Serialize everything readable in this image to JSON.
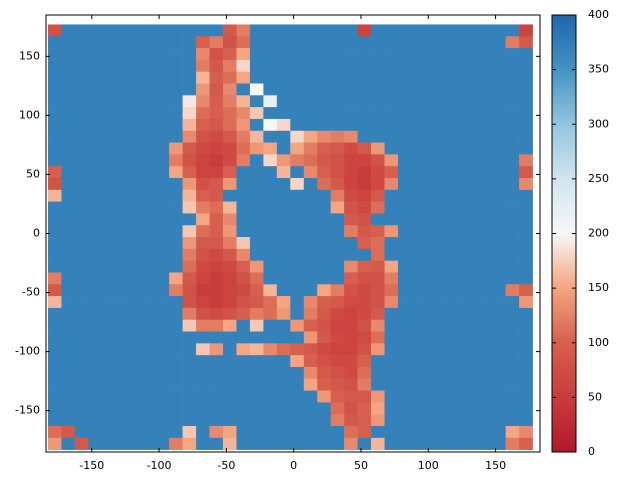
{
  "chart_data": {
    "type": "heatmap",
    "xlim": [
      -184,
      183
    ],
    "ylim": [
      -185,
      185
    ],
    "xticks": [
      -150,
      -100,
      -50,
      0,
      50,
      100,
      150
    ],
    "yticks": [
      -150,
      -100,
      -50,
      0,
      50,
      100,
      150
    ],
    "clim": [
      0,
      400
    ],
    "cticks": [
      0,
      50,
      100,
      150,
      200,
      250,
      300,
      350,
      400
    ],
    "colorscale": [
      [
        0,
        "#b2182b"
      ],
      [
        50,
        "#c93c3c"
      ],
      [
        100,
        "#d6604d"
      ],
      [
        150,
        "#f4a582"
      ],
      [
        200,
        "#f7f7f7"
      ],
      [
        250,
        "#d1e5f0"
      ],
      [
        300,
        "#92c5de"
      ],
      [
        350,
        "#4393c3"
      ],
      [
        400,
        "#2166ac"
      ]
    ],
    "x": [
      -177.5,
      -167.5,
      -157.5,
      -147.5,
      -137.5,
      -127.5,
      -117.5,
      -107.5,
      -97.5,
      -87.5,
      -77.5,
      -67.5,
      -57.5,
      -47.5,
      -37.5,
      -27.5,
      -17.5,
      -7.5,
      2.5,
      12.5,
      22.5,
      32.5,
      42.5,
      52.5,
      62.5,
      72.5,
      82.5,
      92.5,
      102.5,
      112.5,
      122.5,
      132.5,
      142.5,
      152.5,
      162.5,
      172.5
    ],
    "y": [
      172,
      162,
      152,
      142,
      132,
      122,
      112,
      102,
      92,
      82,
      72,
      62,
      52,
      42,
      32,
      22,
      12,
      2,
      -8,
      -18,
      -28,
      -38,
      -48,
      -58,
      -68,
      -78,
      -88,
      -98,
      -108,
      -118,
      -128,
      -138,
      -148,
      -158,
      -168,
      -178
    ],
    "z": [
      [
        80,
        370,
        370,
        370,
        370,
        370,
        370,
        370,
        370,
        370,
        370,
        370,
        370,
        90,
        120,
        370,
        370,
        370,
        370,
        370,
        370,
        370,
        370,
        60,
        370,
        370,
        370,
        370,
        370,
        370,
        370,
        370,
        370,
        370,
        370,
        60
      ],
      [
        370,
        370,
        370,
        370,
        370,
        370,
        370,
        370,
        370,
        370,
        370,
        100,
        120,
        80,
        110,
        370,
        370,
        370,
        370,
        370,
        370,
        370,
        370,
        370,
        370,
        370,
        370,
        370,
        370,
        370,
        370,
        370,
        370,
        370,
        120,
        90
      ],
      [
        370,
        370,
        370,
        370,
        370,
        370,
        370,
        370,
        370,
        370,
        370,
        130,
        80,
        100,
        150,
        370,
        370,
        370,
        370,
        370,
        370,
        370,
        370,
        370,
        370,
        370,
        370,
        370,
        370,
        370,
        370,
        370,
        370,
        370,
        370,
        370
      ],
      [
        370,
        370,
        370,
        370,
        370,
        370,
        370,
        370,
        370,
        370,
        370,
        120,
        90,
        120,
        180,
        370,
        370,
        370,
        370,
        370,
        370,
        370,
        370,
        370,
        370,
        370,
        370,
        370,
        370,
        370,
        370,
        370,
        370,
        370,
        370,
        370
      ],
      [
        370,
        370,
        370,
        370,
        370,
        370,
        370,
        370,
        370,
        370,
        370,
        160,
        100,
        110,
        150,
        370,
        370,
        370,
        370,
        370,
        370,
        370,
        370,
        370,
        370,
        370,
        370,
        370,
        370,
        370,
        370,
        370,
        370,
        370,
        370,
        370
      ],
      [
        370,
        370,
        370,
        370,
        370,
        370,
        370,
        370,
        370,
        370,
        370,
        140,
        90,
        130,
        370,
        200,
        370,
        370,
        370,
        370,
        370,
        370,
        370,
        370,
        370,
        370,
        370,
        370,
        370,
        370,
        370,
        370,
        370,
        370,
        370,
        370
      ],
      [
        370,
        370,
        370,
        370,
        370,
        370,
        370,
        370,
        370,
        370,
        190,
        130,
        100,
        120,
        160,
        370,
        220,
        370,
        370,
        370,
        370,
        370,
        370,
        370,
        370,
        370,
        370,
        370,
        370,
        370,
        370,
        370,
        370,
        370,
        370,
        370
      ],
      [
        370,
        370,
        370,
        370,
        370,
        370,
        370,
        370,
        370,
        370,
        180,
        110,
        100,
        110,
        130,
        170,
        370,
        370,
        370,
        370,
        370,
        370,
        370,
        370,
        370,
        370,
        370,
        370,
        370,
        370,
        370,
        370,
        370,
        370,
        370,
        370
      ],
      [
        370,
        370,
        370,
        370,
        370,
        370,
        370,
        370,
        370,
        370,
        160,
        100,
        90,
        110,
        140,
        370,
        200,
        180,
        370,
        370,
        370,
        370,
        370,
        370,
        370,
        370,
        370,
        370,
        370,
        370,
        370,
        370,
        370,
        370,
        370,
        370
      ],
      [
        370,
        370,
        370,
        370,
        370,
        370,
        370,
        370,
        370,
        370,
        130,
        80,
        70,
        90,
        120,
        160,
        370,
        370,
        180,
        150,
        130,
        120,
        130,
        370,
        370,
        370,
        370,
        370,
        370,
        370,
        370,
        370,
        370,
        370,
        370,
        370
      ],
      [
        370,
        370,
        370,
        370,
        370,
        370,
        370,
        370,
        370,
        140,
        90,
        70,
        60,
        70,
        110,
        140,
        150,
        370,
        150,
        120,
        100,
        90,
        70,
        90,
        140,
        370,
        370,
        370,
        370,
        370,
        370,
        370,
        370,
        370,
        370,
        370
      ],
      [
        370,
        370,
        370,
        370,
        370,
        370,
        370,
        370,
        370,
        120,
        80,
        60,
        50,
        70,
        120,
        370,
        180,
        140,
        120,
        110,
        90,
        80,
        60,
        60,
        80,
        140,
        370,
        370,
        370,
        370,
        370,
        370,
        370,
        370,
        370,
        120
      ],
      [
        100,
        370,
        370,
        370,
        370,
        370,
        370,
        370,
        370,
        150,
        100,
        60,
        60,
        100,
        370,
        370,
        370,
        160,
        370,
        130,
        100,
        80,
        60,
        50,
        70,
        100,
        370,
        370,
        370,
        370,
        370,
        370,
        370,
        370,
        370,
        90
      ],
      [
        80,
        370,
        370,
        370,
        370,
        370,
        370,
        370,
        370,
        370,
        140,
        80,
        90,
        140,
        370,
        370,
        370,
        370,
        180,
        370,
        110,
        90,
        60,
        50,
        70,
        130,
        370,
        370,
        370,
        370,
        370,
        370,
        370,
        370,
        370,
        130
      ],
      [
        160,
        370,
        370,
        370,
        370,
        370,
        370,
        370,
        370,
        370,
        160,
        100,
        90,
        370,
        370,
        370,
        370,
        370,
        370,
        370,
        370,
        120,
        70,
        60,
        90,
        370,
        370,
        370,
        370,
        370,
        370,
        370,
        370,
        370,
        370,
        370
      ],
      [
        370,
        370,
        370,
        370,
        370,
        370,
        370,
        370,
        370,
        370,
        170,
        120,
        110,
        160,
        370,
        370,
        370,
        370,
        370,
        370,
        370,
        150,
        80,
        70,
        110,
        370,
        370,
        370,
        370,
        370,
        370,
        370,
        370,
        370,
        370,
        370
      ],
      [
        370,
        370,
        370,
        370,
        370,
        370,
        370,
        370,
        370,
        370,
        370,
        150,
        100,
        130,
        370,
        370,
        370,
        370,
        370,
        370,
        370,
        370,
        90,
        80,
        370,
        370,
        370,
        370,
        370,
        370,
        370,
        370,
        370,
        370,
        370,
        370
      ],
      [
        370,
        370,
        370,
        370,
        370,
        370,
        370,
        370,
        370,
        370,
        170,
        110,
        100,
        140,
        370,
        370,
        370,
        370,
        370,
        370,
        370,
        370,
        120,
        90,
        100,
        140,
        370,
        370,
        370,
        370,
        370,
        370,
        370,
        370,
        370,
        370
      ],
      [
        370,
        370,
        370,
        370,
        370,
        370,
        370,
        370,
        370,
        370,
        140,
        90,
        90,
        120,
        170,
        370,
        370,
        370,
        370,
        370,
        370,
        370,
        370,
        100,
        110,
        370,
        370,
        370,
        370,
        370,
        370,
        370,
        370,
        370,
        370,
        370
      ],
      [
        370,
        370,
        370,
        370,
        370,
        370,
        370,
        370,
        370,
        370,
        120,
        80,
        70,
        90,
        130,
        370,
        370,
        370,
        370,
        370,
        370,
        370,
        370,
        370,
        110,
        370,
        370,
        370,
        370,
        370,
        370,
        370,
        370,
        370,
        370,
        370
      ],
      [
        370,
        370,
        370,
        370,
        370,
        370,
        370,
        370,
        370,
        370,
        110,
        70,
        60,
        70,
        100,
        140,
        370,
        370,
        370,
        370,
        370,
        370,
        130,
        100,
        90,
        150,
        370,
        370,
        370,
        370,
        370,
        370,
        370,
        370,
        370,
        370
      ],
      [
        120,
        370,
        370,
        370,
        370,
        370,
        370,
        370,
        370,
        150,
        90,
        60,
        50,
        60,
        80,
        110,
        370,
        370,
        370,
        370,
        370,
        370,
        100,
        80,
        80,
        120,
        370,
        370,
        370,
        370,
        370,
        370,
        370,
        370,
        370,
        370
      ],
      [
        90,
        370,
        370,
        370,
        370,
        370,
        370,
        370,
        370,
        120,
        80,
        50,
        50,
        60,
        70,
        100,
        160,
        370,
        370,
        370,
        150,
        120,
        80,
        70,
        80,
        110,
        370,
        370,
        370,
        370,
        370,
        370,
        370,
        370,
        120,
        100
      ],
      [
        160,
        370,
        370,
        370,
        370,
        370,
        370,
        370,
        370,
        370,
        80,
        60,
        50,
        60,
        80,
        90,
        110,
        150,
        370,
        130,
        100,
        90,
        70,
        70,
        80,
        130,
        370,
        370,
        370,
        370,
        370,
        370,
        370,
        370,
        370,
        140
      ],
      [
        370,
        370,
        370,
        370,
        370,
        370,
        370,
        370,
        370,
        370,
        120,
        80,
        70,
        80,
        100,
        120,
        110,
        140,
        370,
        120,
        90,
        70,
        60,
        70,
        90,
        370,
        370,
        370,
        370,
        370,
        370,
        370,
        370,
        370,
        370,
        370
      ],
      [
        370,
        370,
        370,
        370,
        370,
        370,
        370,
        370,
        370,
        370,
        170,
        120,
        120,
        150,
        370,
        170,
        370,
        370,
        140,
        100,
        80,
        60,
        60,
        80,
        130,
        370,
        370,
        370,
        370,
        370,
        370,
        370,
        370,
        370,
        370,
        370
      ],
      [
        370,
        370,
        370,
        370,
        370,
        370,
        370,
        370,
        370,
        370,
        370,
        370,
        370,
        370,
        370,
        370,
        370,
        370,
        370,
        140,
        90,
        70,
        60,
        70,
        110,
        370,
        370,
        370,
        370,
        370,
        370,
        370,
        370,
        370,
        370,
        370
      ],
      [
        370,
        370,
        370,
        370,
        370,
        370,
        370,
        370,
        370,
        370,
        370,
        170,
        140,
        370,
        150,
        160,
        130,
        110,
        100,
        90,
        70,
        60,
        60,
        80,
        140,
        370,
        370,
        370,
        370,
        370,
        370,
        370,
        370,
        370,
        370,
        370
      ],
      [
        370,
        370,
        370,
        370,
        370,
        370,
        370,
        370,
        370,
        370,
        370,
        370,
        370,
        370,
        370,
        370,
        370,
        370,
        150,
        100,
        80,
        70,
        70,
        100,
        370,
        370,
        370,
        370,
        370,
        370,
        370,
        370,
        370,
        370,
        370,
        370
      ],
      [
        370,
        370,
        370,
        370,
        370,
        370,
        370,
        370,
        370,
        370,
        370,
        370,
        370,
        370,
        370,
        370,
        370,
        370,
        370,
        130,
        90,
        80,
        70,
        110,
        370,
        370,
        370,
        370,
        370,
        370,
        370,
        370,
        370,
        370,
        370,
        370
      ],
      [
        370,
        370,
        370,
        370,
        370,
        370,
        370,
        370,
        370,
        370,
        370,
        370,
        370,
        370,
        370,
        370,
        370,
        370,
        370,
        150,
        100,
        90,
        80,
        120,
        370,
        370,
        370,
        370,
        370,
        370,
        370,
        370,
        370,
        370,
        370,
        370
      ],
      [
        370,
        370,
        370,
        370,
        370,
        370,
        370,
        370,
        370,
        370,
        370,
        370,
        370,
        370,
        370,
        370,
        370,
        370,
        370,
        370,
        140,
        100,
        90,
        90,
        140,
        370,
        370,
        370,
        370,
        370,
        370,
        370,
        370,
        370,
        370,
        370
      ],
      [
        370,
        370,
        370,
        370,
        370,
        370,
        370,
        370,
        370,
        370,
        370,
        370,
        370,
        370,
        370,
        370,
        370,
        370,
        370,
        370,
        370,
        110,
        80,
        100,
        150,
        370,
        370,
        370,
        370,
        370,
        370,
        370,
        370,
        370,
        370,
        370
      ],
      [
        370,
        370,
        370,
        370,
        370,
        370,
        370,
        370,
        370,
        370,
        370,
        370,
        370,
        370,
        370,
        370,
        370,
        370,
        370,
        370,
        370,
        120,
        90,
        100,
        140,
        370,
        370,
        370,
        370,
        370,
        370,
        370,
        370,
        370,
        370,
        370
      ],
      [
        110,
        90,
        370,
        370,
        370,
        370,
        370,
        370,
        370,
        370,
        170,
        370,
        130,
        150,
        370,
        370,
        370,
        370,
        370,
        370,
        370,
        370,
        110,
        100,
        370,
        370,
        370,
        370,
        370,
        370,
        370,
        370,
        370,
        370,
        150,
        130
      ],
      [
        140,
        370,
        90,
        370,
        370,
        370,
        370,
        370,
        370,
        120,
        150,
        370,
        370,
        160,
        370,
        370,
        370,
        370,
        370,
        370,
        370,
        370,
        130,
        370,
        160,
        370,
        370,
        370,
        370,
        370,
        370,
        370,
        370,
        370,
        120,
        100
      ]
    ]
  }
}
